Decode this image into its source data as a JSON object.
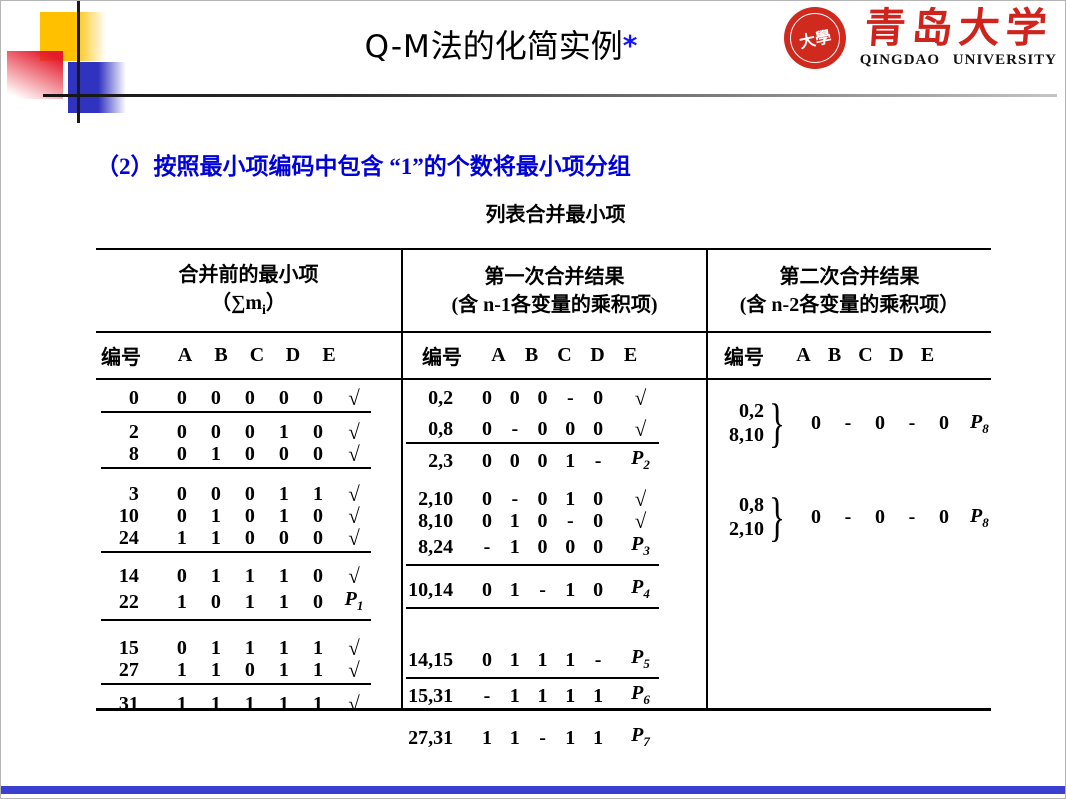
{
  "slide": {
    "title_latin": "Q-M",
    "title_cn": "法的化简实例",
    "title_star": "*",
    "heading": "（2）按照最小项编码中包含 “1”的个数将最小项分组",
    "caption": "列表合并最小项"
  },
  "logo": {
    "seal_center": "大學",
    "cn": "青岛大学",
    "en": "QINGDAO  UNIVERSITY"
  },
  "table": {
    "id_label": "编号",
    "vars": [
      "A",
      "B",
      "C",
      "D",
      "E"
    ],
    "brace": "}",
    "c1": {
      "h1": "合并前的最小项",
      "h2a": "（∑m",
      "h2sub": "i",
      "h2b": "）",
      "groups": [
        {
          "sep": true,
          "rows": [
            {
              "id": "0",
              "bits": [
                "0",
                "0",
                "0",
                "0",
                "0"
              ],
              "mark": "√"
            }
          ]
        },
        {
          "sep": true,
          "rows": [
            {
              "id": "2",
              "bits": [
                "0",
                "0",
                "0",
                "1",
                "0"
              ],
              "mark": "√"
            },
            {
              "id": "8",
              "bits": [
                "0",
                "1",
                "0",
                "0",
                "0"
              ],
              "mark": "√"
            }
          ]
        },
        {
          "sep": true,
          "rows": [
            {
              "id": "3",
              "bits": [
                "0",
                "0",
                "0",
                "1",
                "1"
              ],
              "mark": "√"
            },
            {
              "id": "10",
              "bits": [
                "0",
                "1",
                "0",
                "1",
                "0"
              ],
              "mark": "√"
            },
            {
              "id": "24",
              "bits": [
                "1",
                "1",
                "0",
                "0",
                "0"
              ],
              "mark": "√"
            }
          ]
        },
        {
          "sep": true,
          "rows": [
            {
              "id": "14",
              "bits": [
                "0",
                "1",
                "1",
                "1",
                "0"
              ],
              "mark": "√"
            },
            {
              "id": "22",
              "bits": [
                "1",
                "0",
                "1",
                "1",
                "0"
              ],
              "mark": "P",
              "msub": "1"
            }
          ]
        },
        {
          "sep": true,
          "rows": [
            {
              "id": "15",
              "bits": [
                "0",
                "1",
                "1",
                "1",
                "1"
              ],
              "mark": "√"
            },
            {
              "id": "27",
              "bits": [
                "1",
                "1",
                "0",
                "1",
                "1"
              ],
              "mark": "√"
            }
          ]
        },
        {
          "sep": false,
          "rows": [
            {
              "id": "31",
              "bits": [
                "1",
                "1",
                "1",
                "1",
                "1"
              ],
              "mark": "√"
            }
          ]
        }
      ]
    },
    "c2": {
      "h1": "第一次合并结果",
      "h2": "(含 n-1各变量的乘积项)",
      "groups": [
        {
          "sep": true,
          "rows": [
            {
              "id": "0,2",
              "bits": [
                "0",
                "0",
                "0",
                "-",
                "0"
              ],
              "mark": "√"
            },
            {
              "id": "0,8",
              "bits": [
                "0",
                "-",
                "0",
                "0",
                "0"
              ],
              "mark": "√"
            }
          ]
        },
        {
          "sep": false,
          "rows": [
            {
              "id": "2,3",
              "bits": [
                "0",
                "0",
                "0",
                "1",
                "-"
              ],
              "mark": "P",
              "msub": "2"
            }
          ]
        },
        {
          "sep": true,
          "rows": [
            {
              "id": "2,10",
              "bits": [
                "0",
                "-",
                "0",
                "1",
                "0"
              ],
              "mark": "√"
            },
            {
              "id": "8,10",
              "bits": [
                "0",
                "1",
                "0",
                "-",
                "0"
              ],
              "mark": "√"
            },
            {
              "id": "8,24",
              "bits": [
                "-",
                "1",
                "0",
                "0",
                "0"
              ],
              "mark": "P",
              "msub": "3"
            }
          ]
        },
        {
          "sep": true,
          "rows": [
            {
              "id": "10,14",
              "bits": [
                "0",
                "1",
                "-",
                "1",
                "0"
              ],
              "mark": "P",
              "msub": "4"
            }
          ]
        },
        {
          "sep": true,
          "rows": [
            {
              "id": "14,15",
              "bits": [
                "0",
                "1",
                "1",
                "1",
                "-"
              ],
              "mark": "P",
              "msub": "5"
            }
          ]
        },
        {
          "sep": false,
          "rows": [
            {
              "id": "15,31",
              "bits": [
                "-",
                "1",
                "1",
                "1",
                "1"
              ],
              "mark": "P",
              "msub": "6"
            }
          ]
        },
        {
          "sep": false,
          "rows": [
            {
              "id": "27,31",
              "bits": [
                "1",
                "1",
                "-",
                "1",
                "1"
              ],
              "mark": "P",
              "msub": "7"
            }
          ]
        }
      ]
    },
    "c3": {
      "h1": "第二次合并结果",
      "h2": "(含 n-2各变量的乘积项）",
      "pairs": [
        {
          "ids": [
            "0,2",
            "8,10"
          ],
          "bits": [
            "0",
            "-",
            "0",
            "-",
            "0"
          ],
          "mark": "P",
          "msub": "8"
        },
        {
          "ids": [
            "0,8",
            "2,10"
          ],
          "bits": [
            "0",
            "-",
            "0",
            "-",
            "0"
          ],
          "mark": "P",
          "msub": "8"
        }
      ]
    }
  }
}
